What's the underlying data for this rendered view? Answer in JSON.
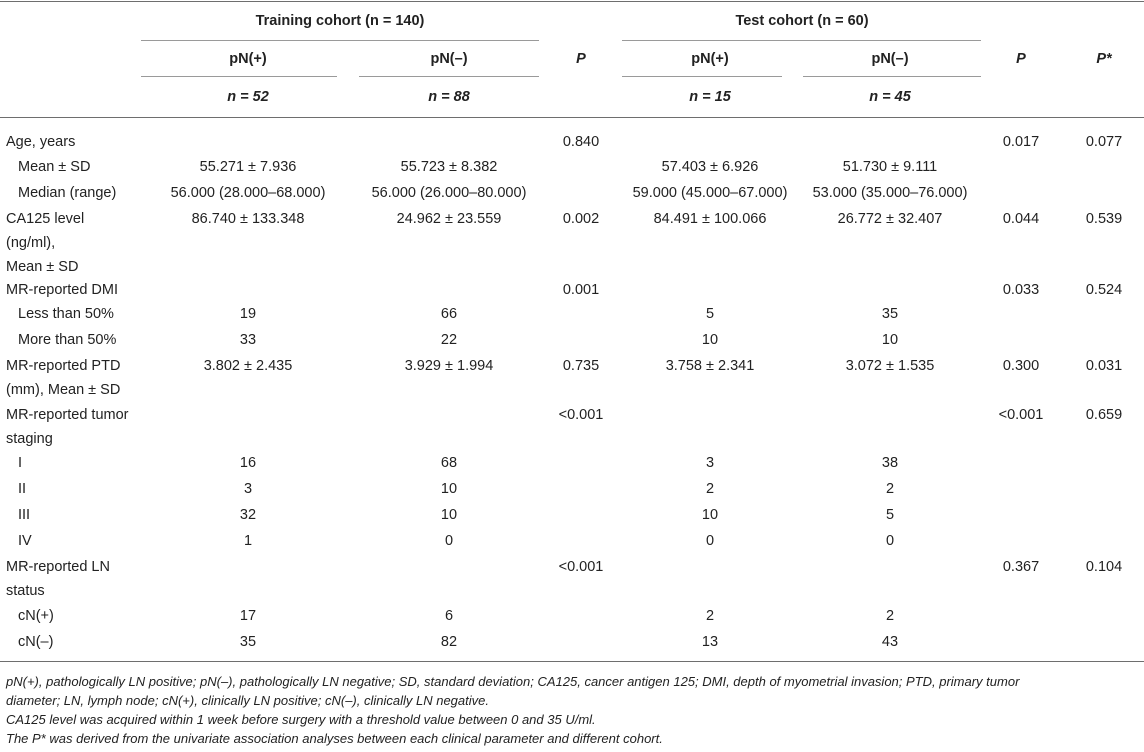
{
  "header": {
    "training_cohort": "Training cohort (n = 140)",
    "test_cohort": "Test cohort (n = 60)",
    "pn_pos": "pN(+)",
    "pn_neg": "pN(–)",
    "p": "P",
    "p_star": "P*",
    "train_n_pos": "n = 52",
    "train_n_neg": "n = 88",
    "test_n_pos": "n = 15",
    "test_n_neg": "n = 45"
  },
  "rows": [
    {
      "label": [
        "Age, years"
      ],
      "indent": false,
      "train_pos": "",
      "train_neg": "",
      "p1": "0.840",
      "test_pos": "",
      "test_neg": "",
      "p2": "0.017",
      "p3": "0.077"
    },
    {
      "label": [
        "Mean ± SD"
      ],
      "indent": true,
      "train_pos": "55.271 ± 7.936",
      "train_neg": "55.723 ± 8.382",
      "p1": "",
      "test_pos": "57.403 ± 6.926",
      "test_neg": "51.730 ± 9.111",
      "p2": "",
      "p3": ""
    },
    {
      "label": [
        "Median (range)"
      ],
      "indent": true,
      "train_pos": "56.000 (28.000–68.000)",
      "train_neg": "56.000 (26.000–80.000)",
      "p1": "",
      "test_pos": "59.000 (45.000–67.000)",
      "test_neg": "53.000 (35.000–76.000)",
      "p2": "",
      "p3": ""
    },
    {
      "label": [
        "CA125 level",
        "(ng/ml),",
        "Mean ± SD"
      ],
      "indent": false,
      "train_pos": "86.740 ± 133.348",
      "train_neg": "24.962 ± 23.559",
      "p1": "0.002",
      "test_pos": "84.491 ± 100.066",
      "test_neg": "26.772 ± 32.407",
      "p2": "0.044",
      "p3": "0.539"
    },
    {
      "label": [
        "MR-reported DMI"
      ],
      "indent": false,
      "train_pos": "",
      "train_neg": "",
      "p1": "0.001",
      "test_pos": "",
      "test_neg": "",
      "p2": "0.033",
      "p3": "0.524"
    },
    {
      "label": [
        "Less than 50%"
      ],
      "indent": true,
      "train_pos": "19",
      "train_neg": "66",
      "p1": "",
      "test_pos": "5",
      "test_neg": "35",
      "p2": "",
      "p3": ""
    },
    {
      "label": [
        "More than 50%"
      ],
      "indent": true,
      "train_pos": "33",
      "train_neg": "22",
      "p1": "",
      "test_pos": "10",
      "test_neg": "10",
      "p2": "",
      "p3": ""
    },
    {
      "label": [
        "MR-reported PTD",
        "(mm), Mean ± SD"
      ],
      "indent": false,
      "train_pos": "3.802 ± 2.435",
      "train_neg": "3.929 ± 1.994",
      "p1": "0.735",
      "test_pos": "3.758 ± 2.341",
      "test_neg": "3.072 ± 1.535",
      "p2": "0.300",
      "p3": "0.031"
    },
    {
      "label": [
        "MR-reported tumor",
        "staging"
      ],
      "indent": false,
      "train_pos": "",
      "train_neg": "",
      "p1": "<0.001",
      "test_pos": "",
      "test_neg": "",
      "p2": "<0.001",
      "p3": "0.659"
    },
    {
      "label": [
        "I"
      ],
      "indent": true,
      "train_pos": "16",
      "train_neg": "68",
      "p1": "",
      "test_pos": "3",
      "test_neg": "38",
      "p2": "",
      "p3": ""
    },
    {
      "label": [
        "II"
      ],
      "indent": true,
      "train_pos": "3",
      "train_neg": "10",
      "p1": "",
      "test_pos": "2",
      "test_neg": "2",
      "p2": "",
      "p3": ""
    },
    {
      "label": [
        "III"
      ],
      "indent": true,
      "train_pos": "32",
      "train_neg": "10",
      "p1": "",
      "test_pos": "10",
      "test_neg": "5",
      "p2": "",
      "p3": ""
    },
    {
      "label": [
        "IV"
      ],
      "indent": true,
      "train_pos": "1",
      "train_neg": "0",
      "p1": "",
      "test_pos": "0",
      "test_neg": "0",
      "p2": "",
      "p3": ""
    },
    {
      "label": [
        "MR-reported LN",
        "status"
      ],
      "indent": false,
      "train_pos": "",
      "train_neg": "",
      "p1": "<0.001",
      "test_pos": "",
      "test_neg": "",
      "p2": "0.367",
      "p3": "0.104"
    },
    {
      "label": [
        "cN(+)"
      ],
      "indent": true,
      "train_pos": "17",
      "train_neg": "6",
      "p1": "",
      "test_pos": "2",
      "test_neg": "2",
      "p2": "",
      "p3": ""
    },
    {
      "label": [
        "cN(–)"
      ],
      "indent": true,
      "train_pos": "35",
      "train_neg": "82",
      "p1": "",
      "test_pos": "13",
      "test_neg": "43",
      "p2": "",
      "p3": ""
    }
  ],
  "footnotes": [
    "pN(+), pathologically LN positive; pN(–), pathologically LN negative; SD, standard deviation; CA125, cancer antigen 125; DMI, depth of myometrial invasion; PTD, primary tumor",
    "diameter; LN, lymph node; cN(+), clinically LN positive; cN(–), clinically LN negative.",
    "CA125 level was acquired within 1 week before surgery with a threshold value between 0 and 35 U/ml.",
    "The P* was derived from the univariate association analyses between each clinical parameter and different cohort."
  ]
}
